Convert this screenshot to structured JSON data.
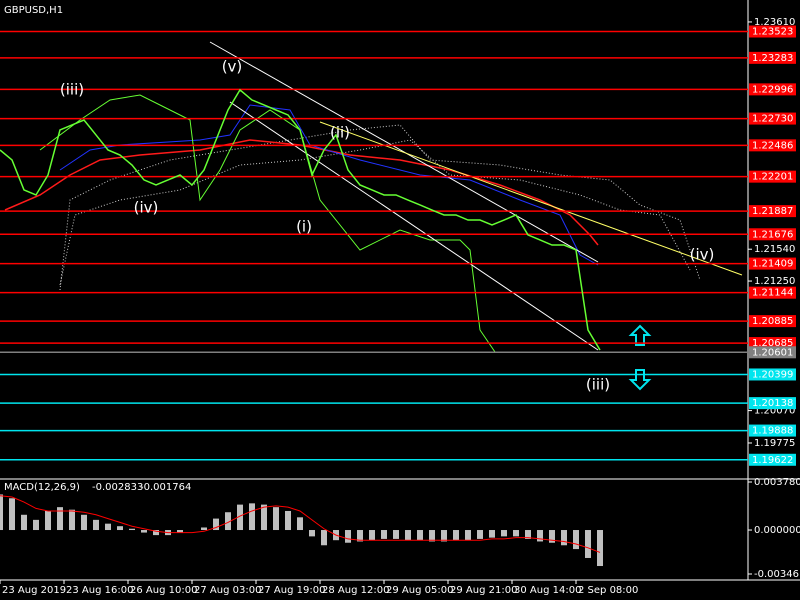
{
  "chart_data": [
    {
      "type": "line",
      "title": "GBPUSD,H1",
      "color": "#66ff33",
      "x": [
        0,
        3,
        6,
        9,
        12,
        15,
        18,
        21,
        24,
        27,
        30,
        33,
        36,
        39,
        42,
        45,
        48,
        51,
        54,
        57,
        60,
        63,
        66,
        69,
        72,
        75,
        78,
        81,
        84,
        87,
        90,
        93,
        96,
        99,
        102,
        105,
        108,
        111,
        114,
        117,
        120,
        123,
        126,
        129,
        132,
        135,
        138,
        141,
        144,
        147,
        150
      ],
      "values": [
        1.22444,
        1.22353,
        1.2208,
        1.22034,
        1.22216,
        1.22626,
        1.22672,
        1.22717,
        1.22581,
        1.22444,
        1.22398,
        1.22307,
        1.22171,
        1.22125,
        1.22171,
        1.22216,
        1.22125,
        1.22262,
        1.22535,
        1.22808,
        1.22991,
        1.22899,
        1.22854,
        1.22808,
        1.22763,
        1.22626,
        1.22216,
        1.22444,
        1.22581,
        1.22262,
        1.22125,
        1.2208,
        1.22034,
        1.22034,
        1.21988,
        1.21943,
        1.21897,
        1.21852,
        1.21852,
        1.21806,
        1.21806,
        1.21761,
        1.21806,
        1.21852,
        1.2167,
        1.21624,
        1.21578,
        1.21578,
        1.21533,
        1.20804,
        1.20622
      ],
      "xlim": [
        0,
        187
      ],
      "ylim": [
        1.19456,
        1.2381
      ],
      "yticks": [
        {
          "value": 1.2361,
          "label": "1.23610"
        },
        {
          "value": 1.2154,
          "label": "1.21540"
        },
        {
          "value": 1.2125,
          "label": "1.21250"
        },
        {
          "value": 1.2007,
          "label": "1.20070"
        },
        1.19775
      ],
      "levels": [
        {
          "value": 1.23523,
          "color": "#ff0000"
        },
        {
          "value": 1.23283,
          "color": "#ff0000"
        },
        {
          "value": 1.22996,
          "color": "#ff0000"
        },
        {
          "value": 1.2273,
          "label": "1.22730",
          "color": "#ff0000"
        },
        {
          "value": 1.22486,
          "color": "#ff0000"
        },
        {
          "value": 1.22201,
          "color": "#ff0000"
        },
        {
          "value": 1.21887,
          "color": "#ff0000"
        },
        {
          "value": 1.21676,
          "color": "#ff0000"
        },
        {
          "value": 1.21409,
          "color": "#ff0000"
        },
        {
          "value": 1.21144,
          "color": "#ff0000"
        },
        {
          "value": 1.20885,
          "color": "#ff0000"
        },
        {
          "value": 1.20685,
          "color": "#ff0000"
        },
        {
          "value": 1.20601,
          "color": "#808080"
        },
        {
          "value": 1.20399,
          "color": "#00e5ee"
        },
        {
          "value": 1.20138,
          "color": "#00e5ee"
        },
        {
          "value": 1.19888,
          "color": "#00e5ee"
        },
        {
          "value": 1.19622,
          "color": "#00e5ee"
        }
      ],
      "annotations": [
        {
          "text": "(iii)",
          "x": 18,
          "y": 1.22991
        },
        {
          "text": "(v)",
          "x": 58,
          "y": 1.232
        },
        {
          "text": "(iv)",
          "x": 36.5,
          "y": 1.21916
        },
        {
          "text": "(i)",
          "x": 76,
          "y": 1.21743
        },
        {
          "text": "(ii)",
          "x": 85,
          "y": 1.22599
        },
        {
          "text": "(iv)",
          "x": 175.5,
          "y": 1.21487
        },
        {
          "text": "(iii)",
          "x": 149.5,
          "y": 1.20303
        }
      ]
    },
    {
      "type": "macd",
      "title": "MACD(12,26,9)",
      "color": "#c0c0c0",
      "signal_color": "#ff0000",
      "x": [
        0,
        3,
        6,
        9,
        12,
        15,
        18,
        21,
        24,
        27,
        30,
        33,
        36,
        39,
        42,
        45,
        48,
        51,
        54,
        57,
        60,
        63,
        66,
        69,
        72,
        75,
        78,
        81,
        84,
        87,
        90,
        93,
        96,
        99,
        102,
        105,
        108,
        111,
        114,
        117,
        120,
        123,
        126,
        129,
        132,
        135,
        138,
        141,
        144,
        147,
        150
      ],
      "values": [
        0.0028,
        0.0025,
        0.0012,
        0.0008,
        0.0015,
        0.0018,
        0.0016,
        0.0012,
        0.0008,
        0.0005,
        0.0003,
        0.0001,
        -0.0002,
        -0.0004,
        -0.0004,
        -0.0002,
        0,
        0.0002,
        0.0009,
        0.0014,
        0.002,
        0.0021,
        0.002,
        0.0018,
        0.0015,
        0.001,
        -0.0005,
        -0.0012,
        -0.0008,
        -0.001,
        -0.0009,
        -0.0008,
        -0.0007,
        -0.0007,
        -0.0008,
        -0.0008,
        -0.0009,
        -0.0009,
        -0.0008,
        -0.0008,
        -0.0007,
        -0.0006,
        -0.0005,
        -0.0005,
        -0.0007,
        -0.0009,
        -0.001,
        -0.0012,
        -0.0015,
        -0.0022,
        -0.002833
      ],
      "signal_values": [
        0.0027,
        0.0026,
        0.0022,
        0.0017,
        0.0015,
        0.0015,
        0.0015,
        0.0014,
        0.0012,
        0.0009,
        0.0006,
        0.0003,
        0.0001,
        -0.0001,
        -0.0002,
        -0.0002,
        -0.0002,
        -0.0001,
        0.0002,
        0.0006,
        0.0011,
        0.0015,
        0.0018,
        0.0019,
        0.0018,
        0.0015,
        0.0008,
        0.0001,
        -0.0004,
        -0.0007,
        -0.0008,
        -0.0008,
        -0.0008,
        -0.0008,
        -0.0008,
        -0.0008,
        -0.0008,
        -0.0008,
        -0.0008,
        -0.0008,
        -0.0008,
        -0.0007,
        -0.0007,
        -0.0006,
        -0.0006,
        -0.0007,
        -0.0008,
        -0.0009,
        -0.0011,
        -0.0014,
        -0.001764
      ],
      "xlim": [
        0,
        187
      ],
      "ylim": [
        -0.003933,
        0.003937
      ],
      "yticks": [
        {
          "value": 0.00378,
          "label": "0.003780"
        },
        {
          "value": 0,
          "label": "0.000000"
        },
        {
          "value": -0.003461,
          "label": "-0.003461"
        }
      ],
      "xticks": [
        {
          "value": 0,
          "label": "23 Aug 2019"
        },
        {
          "value": 16,
          "label": "23 Aug 16:00"
        },
        {
          "value": 32,
          "label": "26 Aug 10:00"
        },
        {
          "value": 48,
          "label": "27 Aug 03:00"
        },
        {
          "value": 64,
          "label": "27 Aug 19:00"
        },
        {
          "value": 80,
          "label": "28 Aug 12:00"
        },
        {
          "value": 96,
          "label": "29 Aug 05:00"
        },
        {
          "value": 112,
          "label": "29 Aug 21:00"
        },
        {
          "value": 128,
          "label": "30 Aug 14:00"
        },
        {
          "value": 144,
          "label": "2 Sep 08:00"
        }
      ]
    }
  ]
}
